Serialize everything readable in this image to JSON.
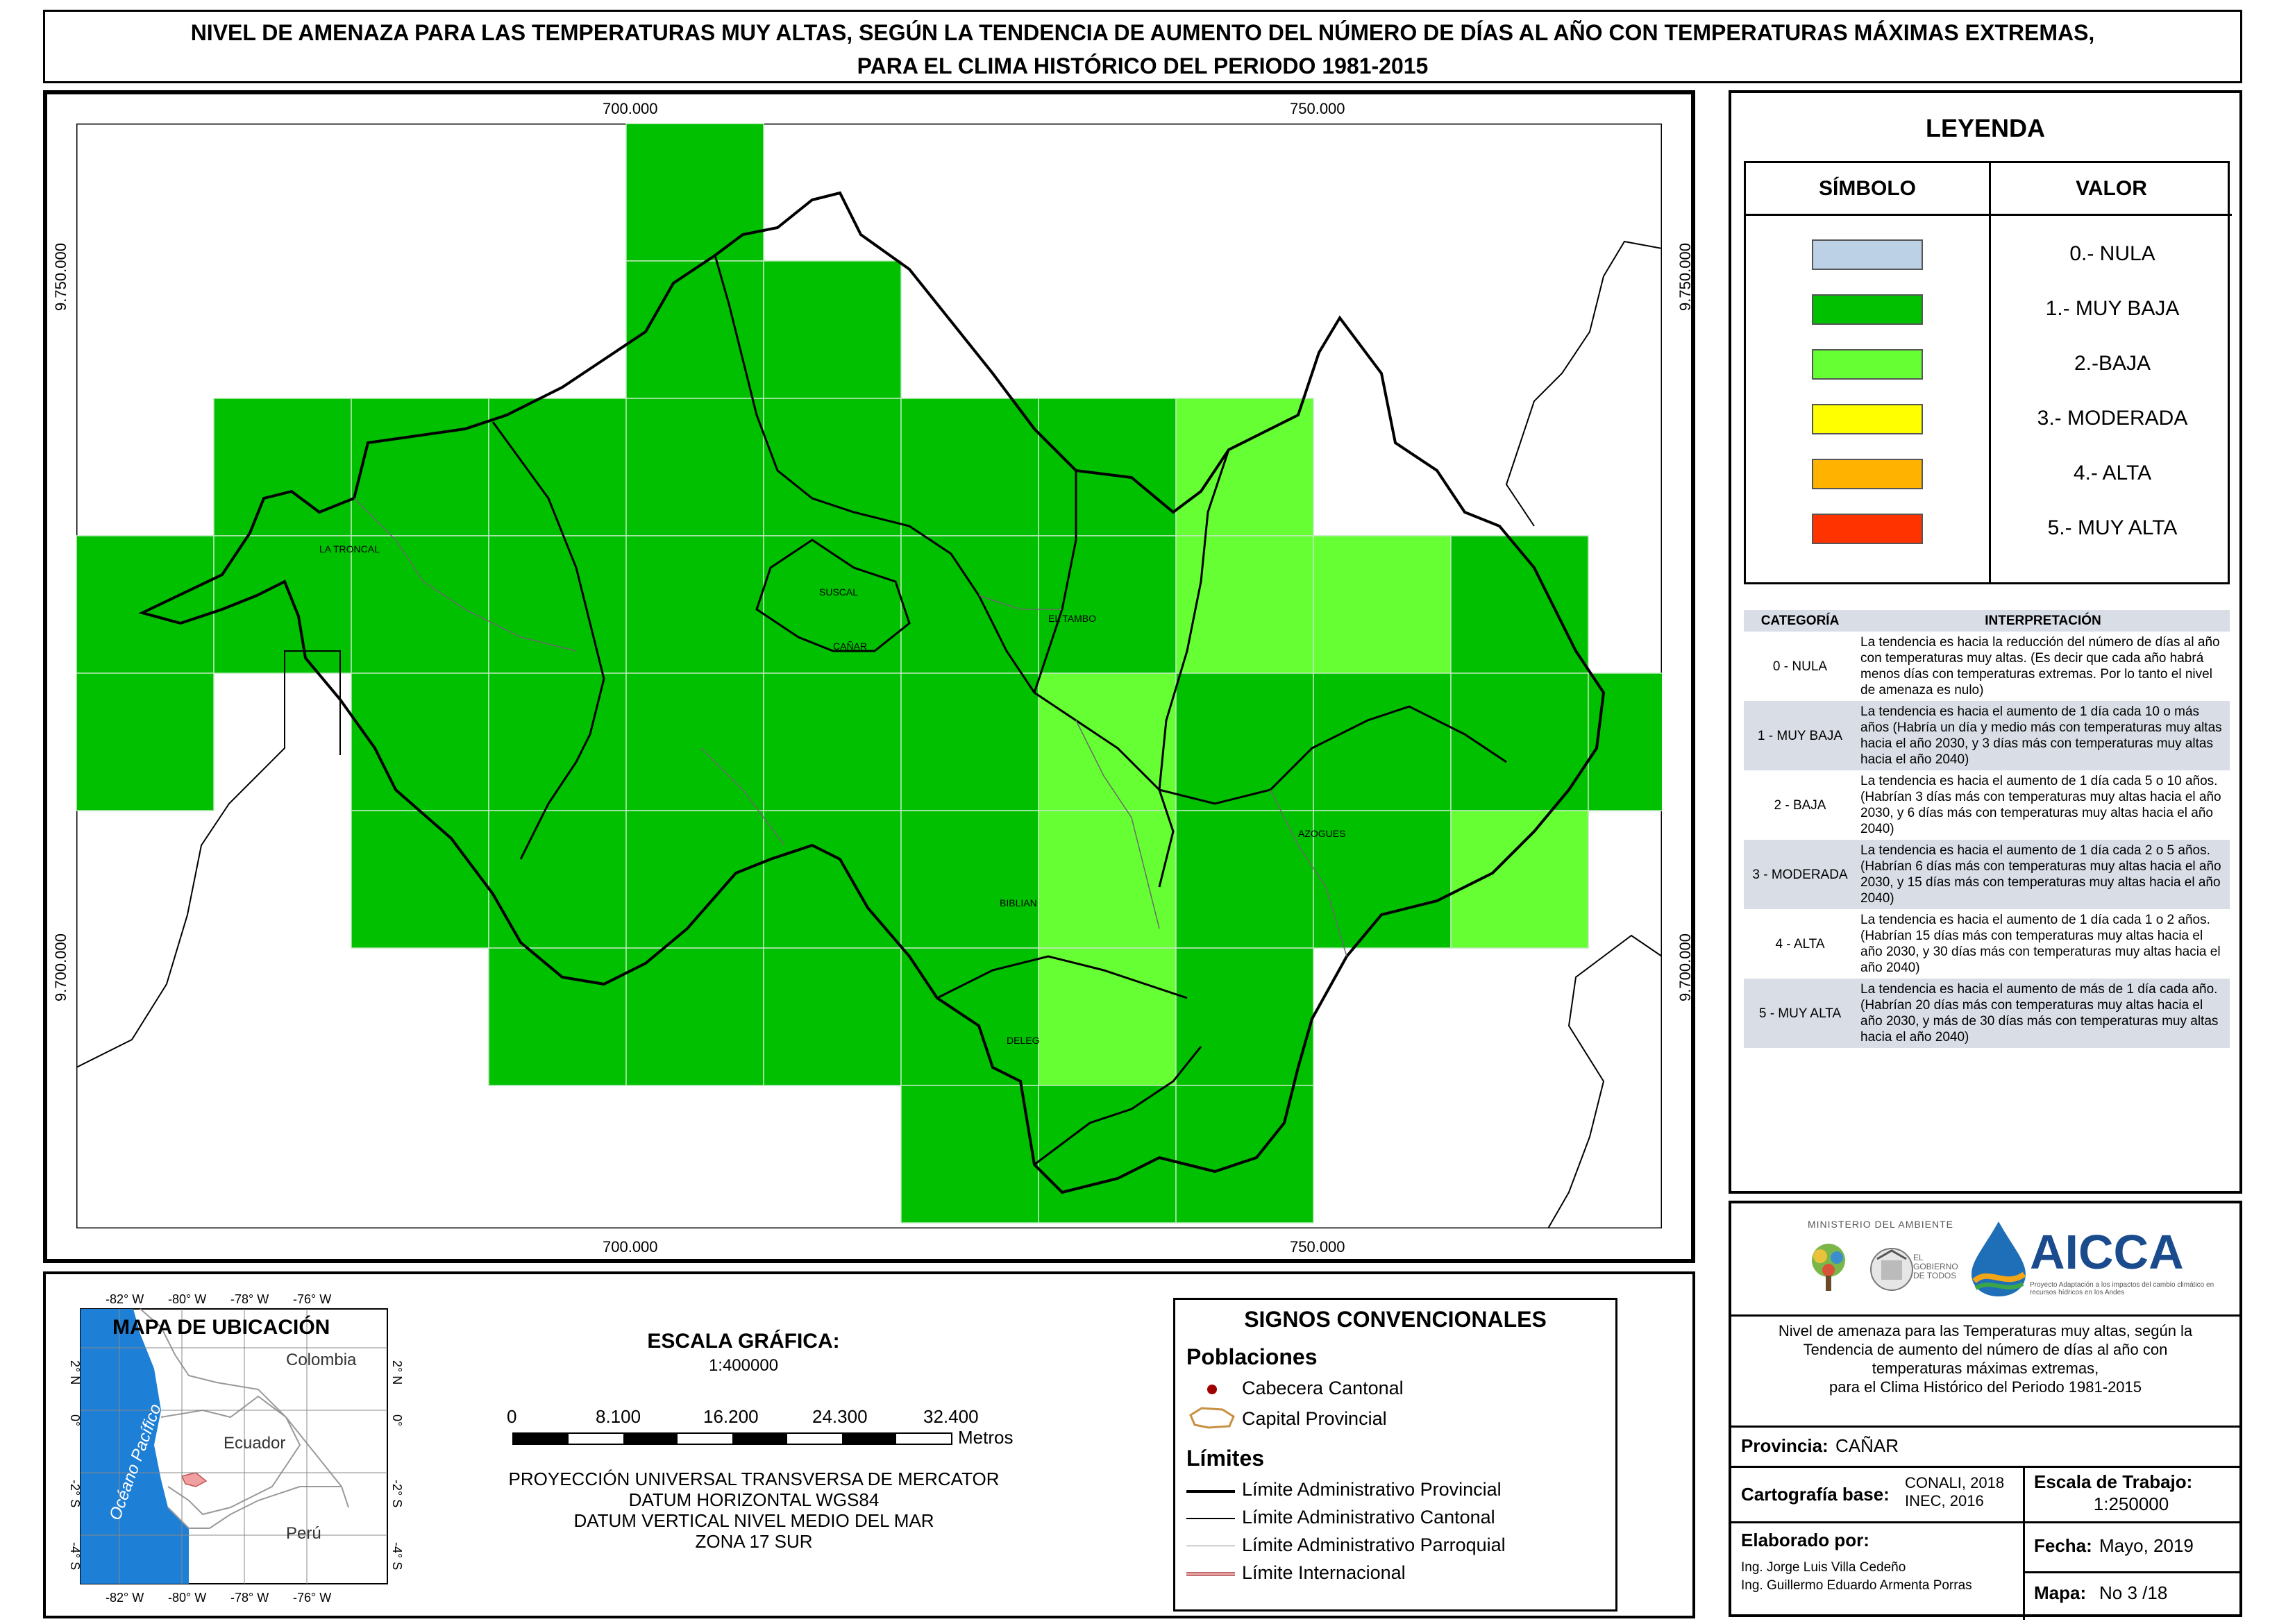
{
  "title": {
    "line1": "NIVEL DE AMENAZA PARA LAS TEMPERATURAS MUY ALTAS, SEGÚN LA TENDENCIA DE AUMENTO DEL NÚMERO DE DÍAS AL AÑO CON TEMPERATURAS MÁXIMAS EXTREMAS,",
    "line2": "PARA EL CLIMA HISTÓRICO DEL PERIODO 1981-2015"
  },
  "map": {
    "x_ticks": [
      "700.000",
      "750.000"
    ],
    "y_ticks": [
      "9.750.000",
      "9.700.000"
    ],
    "places": [
      "LA TRONCAL",
      "SUSCAL",
      "CAÑAR",
      "EL TAMBO",
      "AZOGUES",
      "BIBLIAN",
      "DELEG"
    ],
    "colors": {
      "muy_baja": "#00c000",
      "baja": "#66ff33",
      "nula": "#bcd0e6"
    }
  },
  "legend": {
    "title": "LEYENDA",
    "col_symbol": "SÍMBOLO",
    "col_value": "VALOR",
    "items": [
      {
        "label": "0.- NULA",
        "color": "#bcd0e6"
      },
      {
        "label": "1.- MUY BAJA",
        "color": "#00c000"
      },
      {
        "label": "2.-BAJA",
        "color": "#66ff33"
      },
      {
        "label": "3.- MODERADA",
        "color": "#ffff00"
      },
      {
        "label": "4.- ALTA",
        "color": "#ffb300"
      },
      {
        "label": "5.- MUY ALTA",
        "color": "#ff3300"
      }
    ],
    "table_head": {
      "cat": "CATEGORÍA",
      "interp": "INTERPRETACIÓN"
    },
    "rows": [
      {
        "cat": "0 - NULA",
        "text": "La tendencia es hacia la reducción del número de días al año con temperaturas muy altas. (Es decir que cada año habrá menos días con temperaturas extremas. Por lo tanto el nivel de amenaza es nulo)"
      },
      {
        "cat": "1 - MUY BAJA",
        "text": "La tendencia es hacia el aumento de 1 día cada 10 o más años (Habría un día y medio más con temperaturas muy altas hacia el año 2030, y 3 días más con temperaturas muy altas hacia el año 2040)"
      },
      {
        "cat": "2 - BAJA",
        "text": "La tendencia es hacia el aumento de 1 día cada 5 o 10 años. (Habrían 3 días más con temperaturas muy altas hacia el año 2030, y 6 días más con temperaturas muy altas hacia el año 2040)"
      },
      {
        "cat": "3 - MODERADA",
        "text": "La tendencia es hacia el aumento de 1 día cada 2 o 5 años. (Habrían 6 días más con temperaturas muy altas hacia el año 2030, y 15 días más con temperaturas muy altas hacia el año 2040)"
      },
      {
        "cat": "4 - ALTA",
        "text": "La tendencia es hacia el aumento de 1 día cada 1 o 2 años. (Habrían 15 días más con temperaturas muy altas hacia el año 2030, y 30 días más con temperaturas muy altas hacia el año 2040)"
      },
      {
        "cat": "5 - MUY ALTA",
        "text": "La tendencia es hacia el aumento de más de 1 día cada año. (Habrían 20 días más con temperaturas muy altas hacia el año 2030, y más de 30 días más con temperaturas muy altas hacia el año 2040)"
      }
    ]
  },
  "location_map": {
    "title": "MAPA DE UBICACIÓN",
    "lon_ticks": [
      "-82° W",
      "-80° W",
      "-78° W",
      "-76° W"
    ],
    "lat_ticks": [
      "2° N",
      "0°",
      "-2° S",
      "-4° S"
    ],
    "countries": [
      "Colombia",
      "Ecuador",
      "Perú"
    ],
    "ocean": "Océano Pacífico"
  },
  "scale": {
    "title": "ESCALA GRÁFICA:",
    "ratio": "1:400000",
    "labels": [
      "0",
      "8.100",
      "16.200",
      "24.300",
      "32.400"
    ],
    "unit": "Metros",
    "projection": [
      "PROYECCIÓN UNIVERSAL TRANSVERSA DE MERCATOR",
      "DATUM HORIZONTAL WGS84",
      "DATUM VERTICAL NIVEL MEDIO DEL MAR",
      "ZONA 17 SUR"
    ]
  },
  "signs": {
    "title": "SIGNOS CONVENCIONALES",
    "poblaciones": "Poblaciones",
    "cabecera": "Cabecera Cantonal",
    "capital": "Capital Provincial",
    "limites": "Límites",
    "lim_prov": "Límite Administrativo Provincial",
    "lim_cant": "Límite Administrativo Cantonal",
    "lim_parr": "Límite Administrativo Parroquial",
    "lim_int": "Límite Internacional"
  },
  "info": {
    "ministerio": "MINISTERIO DEL AMBIENTE",
    "gobierno": "EL GOBIERNO DE TODOS",
    "aicca": "AICCA",
    "aicca_sub": "Proyecto Adaptación a los impactos del cambio climático en recursos hídricos en los Andes",
    "description": [
      "Nivel de amenaza para las Temperaturas muy altas, según la",
      "Tendencia de aumento del número de días al año con",
      "temperaturas máximas extremas,",
      "para el Clima Histórico del Periodo 1981-2015"
    ],
    "provincia_label": "Provincia:",
    "provincia": "CAÑAR",
    "cartografia_label": "Cartografía base:",
    "cartografia": [
      "CONALI, 2018",
      "INEC, 2016"
    ],
    "escala_label": "Escala de Trabajo:",
    "escala": "1:250000",
    "elaborado_label": "Elaborado por:",
    "autores": [
      "Ing. Jorge Luis Villa Cedeño",
      "Ing. Guillermo Eduardo Armenta Porras"
    ],
    "fecha_label": "Fecha:",
    "fecha": "Mayo, 2019",
    "mapa_label": "Mapa:",
    "mapa": "No 3 /18"
  }
}
